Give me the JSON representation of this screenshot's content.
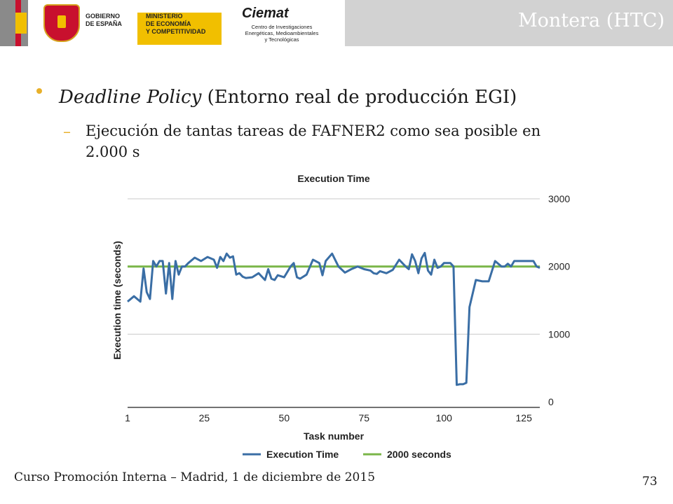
{
  "header": {
    "gov_line1": "GOBIERNO",
    "gov_line2": "DE ESPAÑA",
    "ministry_line1": "MINISTERIO",
    "ministry_line2": "DE ECONOMÍA",
    "ministry_line3": "Y COMPETITIVIDAD",
    "ciemat_logo": "Ciemat",
    "ciemat_desc1": "Centro de Investigaciones",
    "ciemat_desc2": "Energéticas, Medioambientales",
    "ciemat_desc3": "y Tecnológicas",
    "section_title": "Montera (HTC)"
  },
  "content": {
    "bullet_italic": "Deadline Policy",
    "bullet_rest": " (Entorno real de producción EGI)",
    "sub_line1": "Ejecución de tantas tareas de FAFNER2 como sea posible en",
    "sub_line2": "2.000 s"
  },
  "chart_data": {
    "type": "line",
    "title": "Execution Time",
    "xlabel": "Task number",
    "ylabel": "Execution time (seconds)",
    "xlim": [
      1,
      130
    ],
    "ylim": [
      0,
      3000
    ],
    "x_ticks": [
      1,
      25,
      50,
      75,
      100,
      125
    ],
    "y_ticks": [
      0,
      1000,
      2000,
      3000
    ],
    "grid": "horizontal",
    "legend_position": "bottom",
    "colors": {
      "execution": "#3a6ea5",
      "target": "#7ab648",
      "grid": "#c8c8c8"
    },
    "series": [
      {
        "name": "Execution Time",
        "x": [
          1,
          3,
          5,
          6,
          7,
          8,
          9,
          10,
          11,
          12,
          13,
          14,
          15,
          16,
          17,
          18,
          19,
          20,
          22,
          24,
          26,
          28,
          29,
          30,
          31,
          32,
          33,
          34,
          35,
          36,
          37,
          38,
          40,
          42,
          44,
          45,
          46,
          47,
          48,
          50,
          52,
          53,
          54,
          55,
          57,
          59,
          61,
          62,
          63,
          65,
          67,
          69,
          71,
          73,
          75,
          76,
          77,
          78,
          79,
          80,
          82,
          84,
          86,
          88,
          89,
          90,
          91,
          92,
          93,
          94,
          95,
          96,
          97,
          98,
          99,
          100,
          101,
          102,
          103,
          104,
          105,
          106,
          107,
          108,
          110,
          112,
          114,
          116,
          118,
          119,
          120,
          121,
          122,
          124,
          126,
          128,
          129,
          130
        ],
        "y": [
          1480,
          1560,
          1480,
          1970,
          1620,
          1520,
          2080,
          2000,
          2080,
          2080,
          1600,
          2050,
          1520,
          2080,
          1880,
          2000,
          2000,
          2050,
          2130,
          2080,
          2140,
          2100,
          1980,
          2140,
          2080,
          2190,
          2130,
          2150,
          1880,
          1900,
          1850,
          1830,
          1840,
          1900,
          1800,
          1960,
          1820,
          1800,
          1870,
          1840,
          2000,
          2050,
          1840,
          1820,
          1880,
          2100,
          2050,
          1870,
          2080,
          2190,
          2000,
          1910,
          1960,
          2000,
          1960,
          1950,
          1940,
          1900,
          1890,
          1930,
          1900,
          1950,
          2100,
          2000,
          1960,
          2180,
          2080,
          1900,
          2120,
          2200,
          1940,
          1880,
          2100,
          1980,
          2000,
          2050,
          2050,
          2050,
          2000,
          250,
          260,
          260,
          280,
          1400,
          1800,
          1780,
          1780,
          2080,
          2000,
          2000,
          2040,
          2000,
          2080,
          2080,
          2080,
          2080,
          2000,
          1980
        ]
      },
      {
        "name": "2000 seconds",
        "x": [
          1,
          130
        ],
        "y": [
          2000,
          2000
        ]
      }
    ]
  },
  "footer": {
    "text": "Curso Promoción Interna – Madrid, 1 de diciembre de 2015",
    "page_number": "73"
  }
}
